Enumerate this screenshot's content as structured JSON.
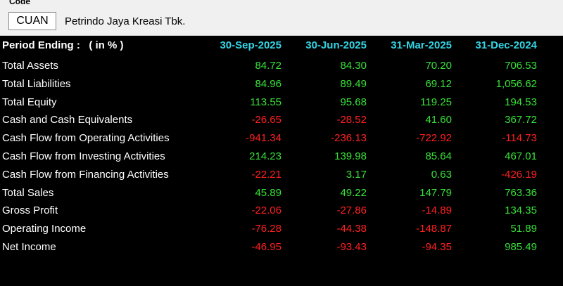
{
  "header": {
    "code_label": "Code",
    "code_value": "CUAN",
    "company_name": "Petrindo Jaya Kreasi Tbk."
  },
  "table": {
    "header_label": "Period Ending :   ( in % )",
    "columns": [
      "30-Sep-2025",
      "30-Jun-2025",
      "31-Mar-2025",
      "31-Dec-2024"
    ],
    "rows": [
      {
        "label": "Total Assets",
        "values": [
          "84.72",
          "84.30",
          "70.20",
          "706.53"
        ]
      },
      {
        "label": "Total Liabilities",
        "values": [
          "84.96",
          "89.49",
          "69.12",
          "1,056.62"
        ]
      },
      {
        "label": "Total Equity",
        "values": [
          "113.55",
          "95.68",
          "119.25",
          "194.53"
        ]
      },
      {
        "label": "Cash and Cash Equivalents",
        "values": [
          "-26.65",
          "-28.52",
          "41.60",
          "367.72"
        ]
      },
      {
        "label": "Cash Flow from Operating Activities",
        "values": [
          "-941.34",
          "-236.13",
          "-722.92",
          "-114.73"
        ]
      },
      {
        "label": "Cash Flow from Investing Activities",
        "values": [
          "214.23",
          "139.98",
          "85.64",
          "467.01"
        ]
      },
      {
        "label": "Cash Flow from Financing Activities",
        "values": [
          "-22.21",
          "3.17",
          "0.63",
          "-426.19"
        ]
      },
      {
        "label": "Total Sales",
        "values": [
          "45.89",
          "49.22",
          "147.79",
          "763.36"
        ]
      },
      {
        "label": "Gross Profit",
        "values": [
          "-22.06",
          "-27.86",
          "-14.89",
          "134.35"
        ]
      },
      {
        "label": "Operating Income",
        "values": [
          "-76.28",
          "-44.38",
          "-148.87",
          "51.89"
        ]
      },
      {
        "label": "Net Income",
        "values": [
          "-46.95",
          "-93.43",
          "-94.35",
          "985.49"
        ]
      }
    ]
  },
  "colors": {
    "positive": "#38e038",
    "negative": "#ff2020",
    "header_accent": "#33d6e6",
    "background": "#000000"
  }
}
